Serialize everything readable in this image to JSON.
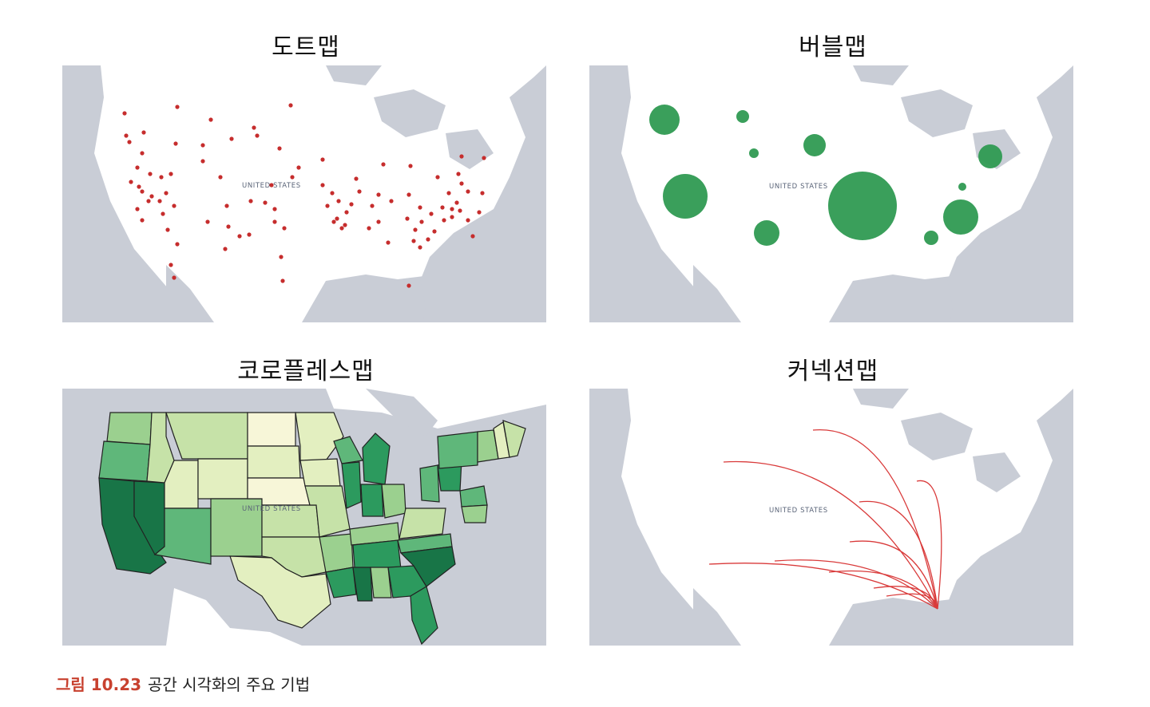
{
  "panels": [
    {
      "title": "도트맵",
      "country_label": "UNITED STATES",
      "technique": "dot",
      "dot_color": "#c62d2d"
    },
    {
      "title": "버블맵",
      "country_label": "UNITED STATES",
      "technique": "bubble",
      "bubble_color": "#2f9a52"
    },
    {
      "title": "코로플레스맵",
      "country_label": "UNITED STATES",
      "technique": "choropleth",
      "palette": [
        "#f7f6d8",
        "#e3efc0",
        "#c6e2a8",
        "#9bd08f",
        "#5fb77a",
        "#2c9a5e",
        "#187547"
      ]
    },
    {
      "title": "커넥션맵",
      "country_label": "UNITED STATES",
      "technique": "connection",
      "line_color": "#d93a3a"
    }
  ],
  "caption": {
    "label": "그림 10.23",
    "text": "공간 시각화의 주요 기법"
  },
  "colors": {
    "water": "#c9cdd6",
    "land": "#ffffff",
    "state_border": "#222222"
  }
}
